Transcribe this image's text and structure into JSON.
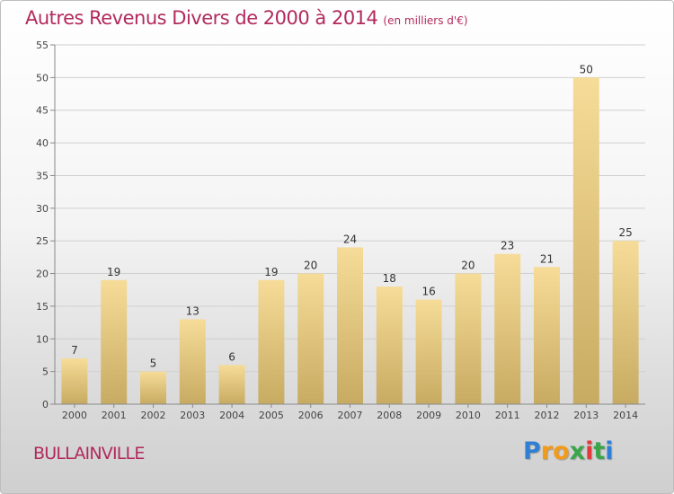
{
  "title": "Autres Revenus Divers de 2000 à 2014",
  "subtitle": "(en milliers d'€)",
  "place_name": "BULLAINVILLE",
  "brand": {
    "letters": [
      "P",
      "r",
      "o",
      "x",
      "i",
      "t",
      "i"
    ],
    "colors": [
      "#2f7fd4",
      "#f29a1a",
      "#f29a1a",
      "#3aa64a",
      "#e23a3a",
      "#3aa64a",
      "#2f7fd4"
    ]
  },
  "colors": {
    "title": "#b22a5c",
    "bar_light": "#f6dc98",
    "bar_dark": "#c8ab62"
  },
  "chart_data": {
    "type": "bar",
    "categories": [
      "2000",
      "2001",
      "2002",
      "2003",
      "2004",
      "2005",
      "2006",
      "2007",
      "2008",
      "2009",
      "2010",
      "2011",
      "2012",
      "2013",
      "2014"
    ],
    "values": [
      7,
      19,
      5,
      13,
      6,
      19,
      20,
      24,
      18,
      16,
      20,
      23,
      21,
      50,
      25
    ],
    "ylim": [
      0,
      55
    ],
    "yticks": [
      0,
      5,
      10,
      15,
      20,
      25,
      30,
      35,
      40,
      45,
      50,
      55
    ],
    "grid": true,
    "data_labels": true
  }
}
